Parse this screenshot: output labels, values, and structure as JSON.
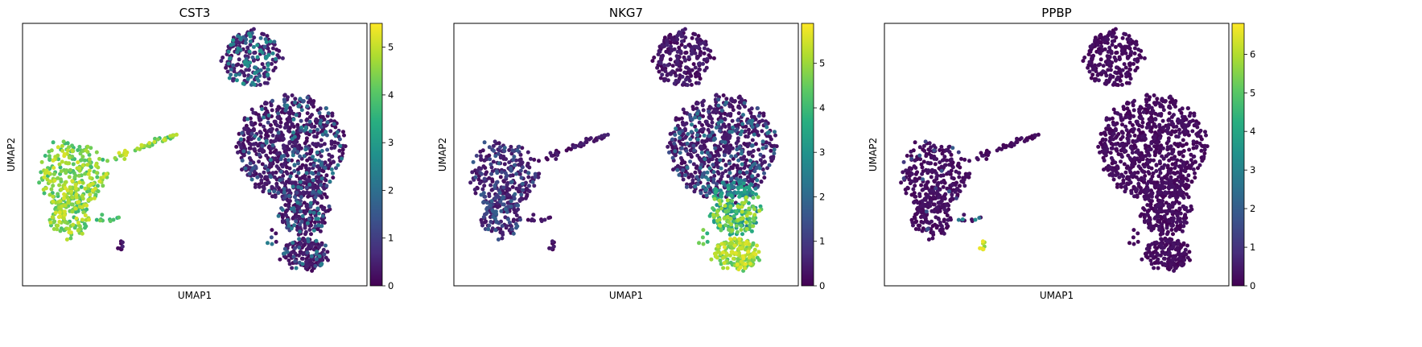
{
  "chart_data": [
    {
      "type": "scatter",
      "title": "CST3",
      "xlabel": "UMAP1",
      "ylabel": "UMAP2",
      "colormap": "viridis",
      "color_range": [
        0,
        5.5
      ],
      "colorbar_ticks": [
        "0",
        "1",
        "2",
        "3",
        "4",
        "5"
      ],
      "colorbar_tick_values": [
        0,
        1,
        2,
        3,
        4,
        5
      ],
      "pattern": "cst3"
    },
    {
      "type": "scatter",
      "title": "NKG7",
      "xlabel": "UMAP1",
      "ylabel": "UMAP2",
      "colormap": "viridis",
      "color_range": [
        0,
        5.9
      ],
      "colorbar_ticks": [
        "0",
        "1",
        "2",
        "3",
        "4",
        "5"
      ],
      "colorbar_tick_values": [
        0,
        1,
        2,
        3,
        4,
        5
      ],
      "pattern": "nkg7"
    },
    {
      "type": "scatter",
      "title": "PPBP",
      "xlabel": "UMAP1",
      "ylabel": "UMAP2",
      "colormap": "viridis",
      "color_range": [
        0,
        6.8
      ],
      "colorbar_ticks": [
        "0",
        "1",
        "2",
        "3",
        "4",
        "5",
        "6"
      ],
      "colorbar_tick_values": [
        0,
        1,
        2,
        3,
        4,
        5,
        6
      ],
      "pattern": "ppbp"
    }
  ]
}
